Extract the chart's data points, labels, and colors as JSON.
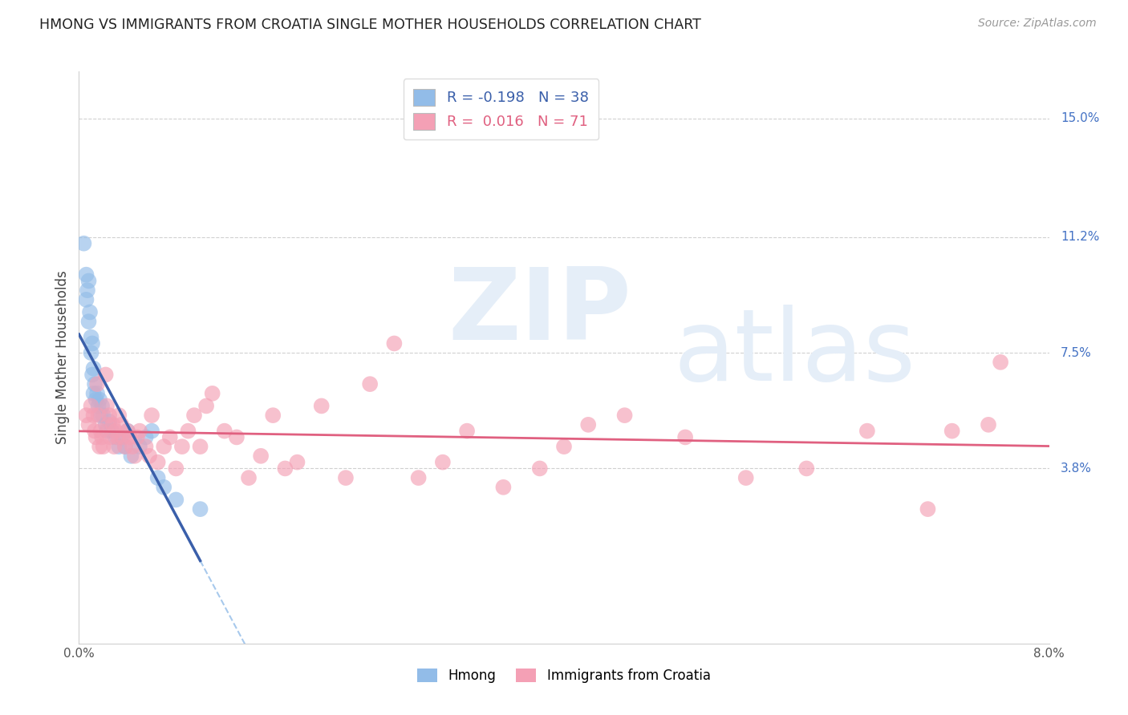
{
  "title": "HMONG VS IMMIGRANTS FROM CROATIA SINGLE MOTHER HOUSEHOLDS CORRELATION CHART",
  "source": "Source: ZipAtlas.com",
  "ylabel": "Single Mother Households",
  "ytick_labels": [
    "3.8%",
    "7.5%",
    "11.2%",
    "15.0%"
  ],
  "ytick_values": [
    3.8,
    7.5,
    11.2,
    15.0
  ],
  "xlim": [
    0.0,
    8.0
  ],
  "ylim_bottom": -1.8,
  "ylim_top": 16.5,
  "hmong_color": "#92bce8",
  "croatia_color": "#f4a0b5",
  "trend_hmong_solid_color": "#3a5faa",
  "trend_hmong_dash_color": "#92bce8",
  "trend_croatia_color": "#e06080",
  "watermark_color": "#e5eef8",
  "background_color": "#ffffff",
  "title_color": "#222222",
  "source_color": "#999999",
  "axis_label_color": "#555555",
  "right_label_color": "#4472c4",
  "grid_color": "#d0d0d0",
  "hmong_x": [
    0.04,
    0.06,
    0.06,
    0.07,
    0.08,
    0.08,
    0.09,
    0.1,
    0.1,
    0.11,
    0.11,
    0.12,
    0.12,
    0.13,
    0.14,
    0.15,
    0.16,
    0.17,
    0.18,
    0.19,
    0.2,
    0.22,
    0.23,
    0.25,
    0.27,
    0.3,
    0.33,
    0.35,
    0.38,
    0.4,
    0.43,
    0.5,
    0.55,
    0.6,
    0.65,
    0.7,
    0.8,
    1.0
  ],
  "hmong_y": [
    11.0,
    9.2,
    10.0,
    9.5,
    9.8,
    8.5,
    8.8,
    8.0,
    7.5,
    7.8,
    6.8,
    7.0,
    6.2,
    6.5,
    6.0,
    6.2,
    5.8,
    6.0,
    5.5,
    5.8,
    5.5,
    5.2,
    5.0,
    5.3,
    5.0,
    4.8,
    4.5,
    4.8,
    4.5,
    5.0,
    4.2,
    4.5,
    4.8,
    5.0,
    3.5,
    3.2,
    2.8,
    2.5
  ],
  "croatia_x": [
    0.06,
    0.08,
    0.1,
    0.12,
    0.13,
    0.14,
    0.15,
    0.16,
    0.17,
    0.18,
    0.19,
    0.2,
    0.22,
    0.23,
    0.24,
    0.25,
    0.26,
    0.28,
    0.29,
    0.3,
    0.32,
    0.33,
    0.35,
    0.36,
    0.38,
    0.4,
    0.42,
    0.44,
    0.46,
    0.48,
    0.5,
    0.55,
    0.58,
    0.6,
    0.65,
    0.7,
    0.75,
    0.8,
    0.85,
    0.9,
    0.95,
    1.0,
    1.05,
    1.1,
    1.2,
    1.3,
    1.4,
    1.5,
    1.6,
    1.7,
    1.8,
    2.0,
    2.2,
    2.4,
    2.6,
    2.8,
    3.0,
    3.2,
    3.5,
    3.8,
    4.0,
    4.2,
    4.5,
    5.0,
    5.5,
    6.0,
    6.5,
    7.0,
    7.2,
    7.5,
    7.6
  ],
  "croatia_y": [
    5.5,
    5.2,
    5.8,
    5.5,
    5.0,
    4.8,
    6.5,
    5.5,
    4.5,
    5.0,
    4.8,
    4.5,
    6.8,
    5.8,
    5.2,
    5.5,
    4.8,
    5.2,
    4.5,
    5.0,
    4.8,
    5.5,
    5.2,
    4.8,
    4.5,
    5.0,
    4.8,
    4.5,
    4.2,
    4.8,
    5.0,
    4.5,
    4.2,
    5.5,
    4.0,
    4.5,
    4.8,
    3.8,
    4.5,
    5.0,
    5.5,
    4.5,
    5.8,
    6.2,
    5.0,
    4.8,
    3.5,
    4.2,
    5.5,
    3.8,
    4.0,
    5.8,
    3.5,
    6.5,
    7.8,
    3.5,
    4.0,
    5.0,
    3.2,
    3.8,
    4.5,
    5.2,
    5.5,
    4.8,
    3.5,
    3.8,
    5.0,
    2.5,
    5.0,
    5.2,
    7.2
  ]
}
